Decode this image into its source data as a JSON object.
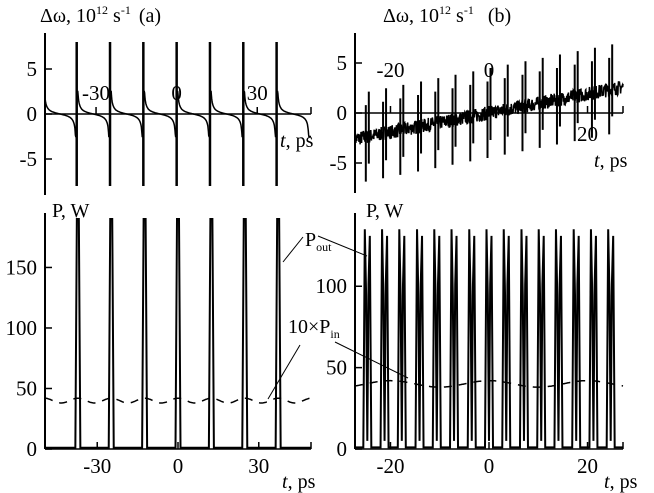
{
  "chart_data": [
    {
      "panel": "(a) top",
      "type": "line",
      "ylabel": "Δω, 10",
      "ylabel_exp": "12",
      "ylabel_unit": " s",
      "ylabel_unit_exp": "-1",
      "panel_label": "(a)",
      "xlabel": "t",
      "xlabel_unit": ", ps",
      "xlim": [
        -49,
        50
      ],
      "ylim": [
        -9,
        9
      ],
      "xticks": [
        -30,
        0,
        30
      ],
      "xtick_labels": [
        "-30",
        "0",
        "30"
      ],
      "yticks": [
        5,
        0,
        -5
      ],
      "ytick_labels": [
        "5",
        "0",
        "-5"
      ],
      "spike_times": [
        -37.2,
        -24.8,
        -12.4,
        0,
        12.4,
        24.8,
        37.2
      ],
      "spike_range": [
        -8,
        8
      ],
      "between_spike_edge_value": 2.5
    },
    {
      "panel": "(b) top",
      "type": "line",
      "ylabel": "Δω, 10",
      "ylabel_exp": "12",
      "ylabel_unit": " s",
      "ylabel_unit_exp": "-1",
      "panel_label": "(b)",
      "xlabel": "t",
      "xlabel_unit": ", ps",
      "xlim": [
        -27.2,
        27.2
      ],
      "ylim": [
        -8,
        8
      ],
      "xticks": [
        -20,
        0,
        20
      ],
      "xtick_labels": [
        "-20",
        "0",
        "20"
      ],
      "yticks": [
        5,
        0,
        -5
      ],
      "ytick_labels": [
        "5",
        "0",
        "-5"
      ],
      "spike_times": [
        -24.7,
        -21.2,
        -17.7,
        -14.1,
        -10.6,
        -7.1,
        -3.5,
        0,
        3.5,
        7.1,
        10.6,
        14.1,
        17.7,
        21.2,
        24.7
      ],
      "baseline_start": -2.6,
      "baseline_end": 2.6,
      "spike_half_amplitude": 4.5
    },
    {
      "panel": "(a) bottom",
      "type": "line",
      "ylabel": "P, W",
      "xlabel": "t",
      "xlabel_unit": ", ps",
      "xlim": [
        -49.4,
        49.4
      ],
      "ylim": [
        0,
        195
      ],
      "xticks": [
        -30,
        0,
        30
      ],
      "xtick_labels": [
        "-30",
        "0",
        "30"
      ],
      "yticks": [
        150,
        100,
        50,
        0
      ],
      "ytick_labels": [
        "150",
        "100",
        "50",
        "0"
      ],
      "series": [
        {
          "name": "P_out",
          "style": "solid",
          "peak_times": [
            -37.2,
            -24.8,
            -12.4,
            0,
            12.4,
            24.8,
            37.2
          ],
          "peak_value": 190,
          "baseline": 1
        },
        {
          "name": "10×P_in",
          "style": "dashed",
          "mean": 40,
          "modulation": 2,
          "period_ps": 12.4
        }
      ]
    },
    {
      "panel": "(b) bottom",
      "type": "line",
      "ylabel": "P, W",
      "xlabel": "t",
      "xlabel_unit": ", ps",
      "xlim": [
        -27.2,
        27.2
      ],
      "ylim": [
        0,
        145
      ],
      "xticks": [
        -20,
        0,
        20
      ],
      "xtick_labels": [
        "-20",
        "0",
        "20"
      ],
      "yticks": [
        100,
        50,
        0
      ],
      "ytick_labels": [
        "100",
        "50",
        "0"
      ],
      "series": [
        {
          "name": "P_out",
          "style": "solid",
          "peak_times": [
            -24.7,
            -21.2,
            -17.7,
            -14.1,
            -10.6,
            -7.1,
            -3.5,
            0,
            3.5,
            7.1,
            10.6,
            14.1,
            17.7,
            21.2,
            24.7
          ],
          "peak_value": 135,
          "baseline": 1
        },
        {
          "name": "10×P_in",
          "style": "dashed",
          "mean": 40,
          "modulation": 2,
          "period_ps": 20
        }
      ]
    }
  ],
  "annotations": {
    "pout_main": "P",
    "pout_sub": "out",
    "pin_prefix": "10×P",
    "pin_sub": "in"
  }
}
